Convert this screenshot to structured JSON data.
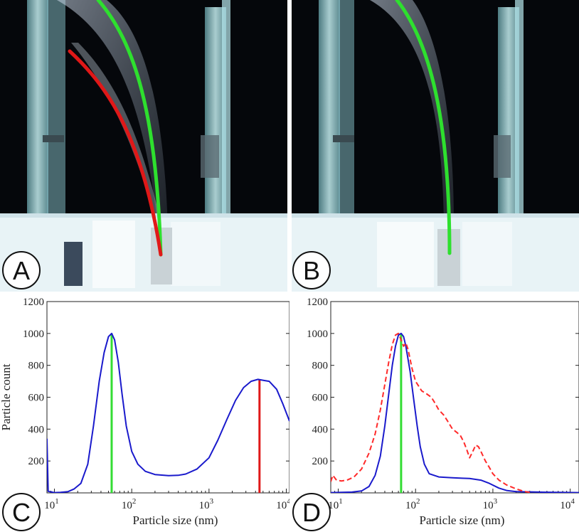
{
  "panels": {
    "a": {
      "letter": "A"
    },
    "b": {
      "letter": "B"
    },
    "c": {
      "letter": "C"
    },
    "d": {
      "letter": "D"
    }
  },
  "colors": {
    "primary_curve": "#1a1acc",
    "secondary_curve": "#ff2a2a",
    "green_marker": "#33dd33",
    "red_marker": "#e01818",
    "photo_background": "#05070b"
  },
  "chart_data": [
    {
      "panel": "C",
      "type": "line",
      "xscale": "log",
      "xlim": [
        8,
        11000
      ],
      "ylim": [
        0,
        1200
      ],
      "xlabel": "Particle size (nm)",
      "ylabel": "Particle count",
      "x_tick_labels": [
        "10^1",
        "10^2",
        "10^3",
        "10^4"
      ],
      "y_tick_labels": [
        "200",
        "400",
        "600",
        "800",
        "1000",
        "1200"
      ],
      "grid": false,
      "series": [
        {
          "style": "solid",
          "color": "#1a1acc",
          "points": [
            [
              8,
              340
            ],
            [
              8.3,
              10
            ],
            [
              10,
              2
            ],
            [
              12,
              3
            ],
            [
              15,
              8
            ],
            [
              18,
              25
            ],
            [
              22,
              60
            ],
            [
              27,
              180
            ],
            [
              32,
              420
            ],
            [
              38,
              700
            ],
            [
              44,
              880
            ],
            [
              50,
              980
            ],
            [
              55,
              1000
            ],
            [
              60,
              960
            ],
            [
              67,
              820
            ],
            [
              75,
              620
            ],
            [
              85,
              420
            ],
            [
              100,
              260
            ],
            [
              120,
              180
            ],
            [
              150,
              135
            ],
            [
              200,
              115
            ],
            [
              300,
              108
            ],
            [
              400,
              110
            ],
            [
              500,
              118
            ],
            [
              700,
              150
            ],
            [
              1000,
              220
            ],
            [
              1300,
              330
            ],
            [
              1700,
              460
            ],
            [
              2200,
              580
            ],
            [
              2800,
              660
            ],
            [
              3500,
              700
            ],
            [
              4300,
              712
            ],
            [
              5200,
              705
            ],
            [
              6000,
              700
            ],
            [
              7500,
              650
            ],
            [
              9000,
              560
            ],
            [
              11000,
              450
            ]
          ]
        }
      ],
      "markers": [
        {
          "x": 55,
          "y_top": 1000,
          "color": "#33dd33"
        },
        {
          "x": 4500,
          "y_top": 710,
          "color": "#e01818"
        }
      ]
    },
    {
      "panel": "D",
      "type": "line",
      "xscale": "log",
      "xlim": [
        8,
        13000
      ],
      "ylim": [
        0,
        1200
      ],
      "xlabel": "Particle size (nm)",
      "ylabel": "",
      "x_tick_labels": [
        "10^1",
        "10^2",
        "10^3",
        "10^4"
      ],
      "y_tick_labels": [
        "200",
        "400",
        "600",
        "800",
        "1000",
        "1200"
      ],
      "grid": false,
      "series": [
        {
          "style": "solid",
          "color": "#1a1acc",
          "points": [
            [
              8,
              2
            ],
            [
              15,
              5
            ],
            [
              20,
              12
            ],
            [
              25,
              40
            ],
            [
              30,
              110
            ],
            [
              35,
              230
            ],
            [
              40,
              420
            ],
            [
              45,
              620
            ],
            [
              50,
              800
            ],
            [
              55,
              920
            ],
            [
              60,
              990
            ],
            [
              65,
              1000
            ],
            [
              70,
              980
            ],
            [
              75,
              920
            ],
            [
              85,
              760
            ],
            [
              95,
              580
            ],
            [
              105,
              420
            ],
            [
              115,
              290
            ],
            [
              130,
              180
            ],
            [
              150,
              120
            ],
            [
              200,
              100
            ],
            [
              300,
              95
            ],
            [
              400,
              92
            ],
            [
              500,
              90
            ],
            [
              700,
              80
            ],
            [
              900,
              60
            ],
            [
              1200,
              30
            ],
            [
              1500,
              15
            ],
            [
              2000,
              8
            ],
            [
              4000,
              5
            ],
            [
              13000,
              2
            ]
          ]
        },
        {
          "style": "dashed",
          "color": "#ff2a2a",
          "points": [
            [
              8,
              70
            ],
            [
              8.5,
              110
            ],
            [
              9.5,
              80
            ],
            [
              11,
              75
            ],
            [
              13,
              80
            ],
            [
              16,
              100
            ],
            [
              20,
              150
            ],
            [
              25,
              250
            ],
            [
              30,
              370
            ],
            [
              35,
              520
            ],
            [
              40,
              680
            ],
            [
              45,
              820
            ],
            [
              50,
              930
            ],
            [
              55,
              990
            ],
            [
              60,
              1000
            ],
            [
              65,
              960
            ],
            [
              70,
              920
            ],
            [
              75,
              940
            ],
            [
              80,
              900
            ],
            [
              90,
              780
            ],
            [
              100,
              700
            ],
            [
              120,
              640
            ],
            [
              140,
              620
            ],
            [
              160,
              600
            ],
            [
              180,
              560
            ],
            [
              200,
              520
            ],
            [
              230,
              490
            ],
            [
              260,
              450
            ],
            [
              300,
              400
            ],
            [
              340,
              380
            ],
            [
              380,
              360
            ],
            [
              420,
              320
            ],
            [
              460,
              270
            ],
            [
              500,
              220
            ],
            [
              550,
              260
            ],
            [
              600,
              300
            ],
            [
              650,
              290
            ],
            [
              700,
              260
            ],
            [
              800,
              200
            ],
            [
              900,
              160
            ],
            [
              1000,
              120
            ],
            [
              1200,
              80
            ],
            [
              1500,
              50
            ],
            [
              2000,
              25
            ],
            [
              2500,
              10
            ],
            [
              3000,
              3
            ]
          ]
        }
      ],
      "markers": [
        {
          "x": 65,
          "y_top": 1000,
          "color": "#33dd33"
        }
      ]
    }
  ]
}
